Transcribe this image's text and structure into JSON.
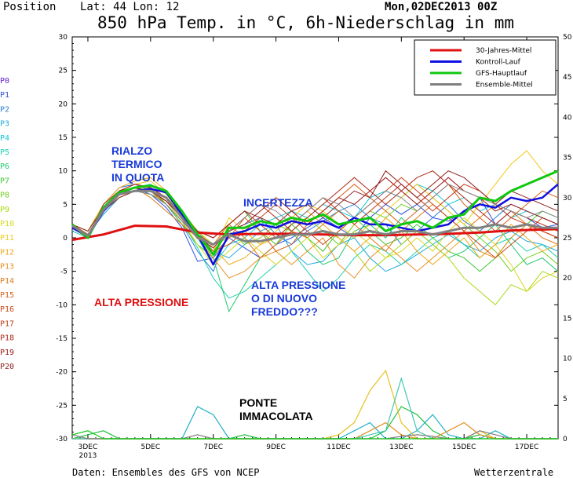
{
  "header": {
    "position_label": "Position",
    "location": "Lat: 44 Lon: 12",
    "run": "Mon,02DEC2013 00Z",
    "title": "850 hPa Temp. in °C, 6h-Niederschlag in mm"
  },
  "footer": {
    "source": "Daten: Ensembles des GFS von NCEP",
    "brand": "Wetterzentrale"
  },
  "members": [
    "P0",
    "P1",
    "P2",
    "P3",
    "P4",
    "P5",
    "P6",
    "P7",
    "P8",
    "P9",
    "P10",
    "P11",
    "P12",
    "P13",
    "P14",
    "P15",
    "P16",
    "P17",
    "P18",
    "P19",
    "P20"
  ],
  "member_colors": [
    "#6020d0",
    "#3050e0",
    "#2a7fd8",
    "#20a8e0",
    "#10c8d8",
    "#20d0b0",
    "#20c870",
    "#40c830",
    "#70d020",
    "#a8d810",
    "#d8d820",
    "#f0c818",
    "#f0a818",
    "#e89020",
    "#e07818",
    "#d86018",
    "#cc4818",
    "#c03818",
    "#b02818",
    "#a01818",
    "#902020"
  ],
  "annotations": {
    "rialzo": [
      "RIALZO",
      "TERMICO",
      "IN QUOTA"
    ],
    "incertezza": "INCERTEZZA",
    "alta_pressione_left": "ALTA PRESSIONE",
    "alta_pressione_mid": [
      "ALTA PRESSIONE",
      "O DI NUOVO",
      "FREDDO???"
    ],
    "ponte": [
      "PONTE",
      "IMMACOLATA"
    ]
  },
  "chart_data": {
    "type": "line",
    "ylim": [
      -30,
      30
    ],
    "y_ticks": [
      30,
      25,
      20,
      15,
      10,
      5,
      0,
      -5,
      -10,
      -15,
      -20,
      -25,
      -30
    ],
    "y2lim": [
      0,
      50
    ],
    "y2_ticks": [
      50,
      45,
      40,
      35,
      30,
      25,
      20,
      15,
      10,
      5,
      0
    ],
    "xlim": [
      0,
      15.5
    ],
    "x_ticks": [
      {
        "x": 0.5,
        "label": "3DEC",
        "sub": "2013"
      },
      {
        "x": 2.5,
        "label": "5DEC",
        "sub": ""
      },
      {
        "x": 4.5,
        "label": "7DEC",
        "sub": ""
      },
      {
        "x": 6.5,
        "label": "9DEC",
        "sub": ""
      },
      {
        "x": 8.5,
        "label": "11DEC",
        "sub": ""
      },
      {
        "x": 10.5,
        "label": "13DEC",
        "sub": ""
      },
      {
        "x": 12.5,
        "label": "15DEC",
        "sub": ""
      },
      {
        "x": 14.5,
        "label": "17DEC",
        "sub": ""
      }
    ],
    "legend": [
      {
        "name": "30-Jahres-Mittel",
        "color": "#e01010"
      },
      {
        "name": "Kontroll-Lauf",
        "color": "#1010e0"
      },
      {
        "name": "GFS-Hauptlauf",
        "color": "#10c810"
      },
      {
        "name": "Ensemble-Mittel",
        "color": "#808080"
      }
    ],
    "main_series": [
      {
        "name": "30-Jahres-Mittel",
        "color": "#e01010",
        "width": 3,
        "x": [
          0,
          1,
          2,
          3,
          4,
          5,
          6,
          7,
          8,
          9,
          10,
          11,
          12,
          13,
          14,
          15.5
        ],
        "y": [
          -0.3,
          0.5,
          1.8,
          1.7,
          0.8,
          0.5,
          0.6,
          0.6,
          0.5,
          0.4,
          0.4,
          0.5,
          0.6,
          0.8,
          1.1,
          1.3
        ]
      },
      {
        "name": "Kontroll-Lauf",
        "color": "#1010e0",
        "width": 2.5,
        "x": [
          0,
          0.5,
          1,
          1.5,
          2,
          2.5,
          3,
          3.5,
          4,
          4.5,
          5,
          5.5,
          6,
          6.5,
          7,
          7.5,
          8,
          8.5,
          9,
          9.5,
          10,
          10.5,
          11,
          11.5,
          12,
          12.5,
          13,
          13.5,
          14,
          14.5,
          15,
          15.5
        ],
        "y": [
          1.5,
          0.2,
          4,
          6.5,
          7,
          7.3,
          6.8,
          3.5,
          0.5,
          -4,
          0.5,
          1,
          2,
          1.5,
          2.5,
          2,
          2.5,
          1.5,
          3,
          2,
          2,
          1.5,
          1,
          1.5,
          2,
          4,
          5,
          4.5,
          6,
          5.5,
          6,
          8
        ]
      },
      {
        "name": "GFS-Hauptlauf",
        "color": "#10c810",
        "width": 3,
        "x": [
          0,
          0.5,
          1,
          1.5,
          2,
          2.5,
          3,
          3.5,
          4,
          4.5,
          5,
          5.5,
          6,
          6.5,
          7,
          7.5,
          8,
          8.5,
          9,
          9.5,
          10,
          10.5,
          11,
          11.5,
          12,
          12.5,
          13,
          13.5,
          14,
          14.5,
          15,
          15.5
        ],
        "y": [
          2,
          0,
          4.5,
          6.8,
          7.5,
          7.8,
          7,
          4,
          0.5,
          -2.5,
          1.5,
          1.5,
          2.5,
          2,
          3,
          2.5,
          3.5,
          2,
          2.5,
          3,
          1,
          2,
          2.5,
          1.5,
          3,
          3.5,
          6,
          5.5,
          7,
          8,
          9,
          10
        ]
      },
      {
        "name": "Ensemble-Mittel",
        "color": "#808080",
        "width": 3,
        "x": [
          0,
          0.5,
          1,
          1.5,
          2,
          2.5,
          3,
          3.5,
          4,
          4.5,
          5,
          5.5,
          6,
          6.5,
          7,
          7.5,
          8,
          8.5,
          9,
          9.5,
          10,
          10.5,
          11,
          11.5,
          12,
          12.5,
          13,
          13.5,
          14,
          14.5,
          15,
          15.5
        ],
        "y": [
          1.8,
          0.3,
          4.2,
          6.5,
          7,
          7,
          6,
          3,
          0,
          -1,
          0.5,
          -0.5,
          -0.5,
          0,
          0.5,
          0.5,
          1,
          0.5,
          0.5,
          1,
          0.5,
          1,
          1,
          0.5,
          1,
          1.5,
          1.5,
          2,
          1.5,
          2,
          1.5,
          1.5
        ]
      }
    ],
    "ensemble_x": [
      0,
      0.5,
      1,
      1.5,
      2,
      2.5,
      3,
      3.5,
      4,
      4.5,
      5,
      5.5,
      6,
      6.5,
      7,
      7.5,
      8,
      8.5,
      9,
      9.5,
      10,
      10.5,
      11,
      11.5,
      12,
      12.5,
      13,
      13.5,
      14,
      14.5,
      15,
      15.5
    ],
    "ensemble_members": [
      [
        1.5,
        0.5,
        4.5,
        6.8,
        7.5,
        6.5,
        4.5,
        1.5,
        -3.5,
        -3,
        0,
        -1.5,
        -3,
        -1,
        0,
        1.5,
        3,
        1.5,
        0,
        3,
        5,
        3.5,
        5,
        3,
        2.5,
        4,
        6,
        2,
        4,
        3,
        1.5,
        2
      ],
      [
        2,
        0,
        5,
        7.5,
        8,
        7,
        5,
        2,
        -2,
        -5,
        1,
        2,
        3,
        0.5,
        -1,
        1,
        2.5,
        4,
        5,
        3,
        2,
        -1,
        1,
        3,
        5,
        2.5,
        1,
        3,
        5,
        4,
        3,
        2
      ],
      [
        1.5,
        0.5,
        3.5,
        6,
        7,
        7.5,
        6,
        3.5,
        1,
        -2,
        -3,
        -1,
        1,
        2,
        -2,
        -4,
        -3.5,
        -1,
        0,
        -3,
        -5,
        -4,
        -2.5,
        -1,
        0.5,
        -1,
        -2,
        0,
        1,
        -0.5,
        -1,
        -2
      ],
      [
        2,
        0.5,
        4,
        6.5,
        7.5,
        8,
        6.5,
        4,
        0,
        -4,
        -1,
        0,
        2,
        3,
        4,
        3,
        5,
        4,
        3,
        6,
        7,
        6,
        8,
        7,
        5,
        6,
        4,
        5,
        3,
        4,
        3,
        2
      ],
      [
        1,
        0,
        4.5,
        7,
        7,
        6.5,
        5,
        2.5,
        -1.5,
        -6,
        -9,
        -8,
        -6,
        -4,
        -2,
        -5,
        -8,
        -6,
        -3,
        -1,
        -2,
        -4,
        -2,
        0,
        1,
        -1,
        -3,
        -1,
        0,
        -2,
        -1,
        -3
      ],
      [
        1.5,
        0,
        4,
        6.5,
        7.5,
        7,
        6,
        3,
        0,
        -3,
        -11,
        -7,
        -3,
        -1,
        1,
        -2,
        -4,
        -3,
        1,
        2,
        0,
        3,
        1,
        -1,
        -3,
        -2,
        0,
        2,
        -1,
        -4,
        -3,
        -5
      ],
      [
        2,
        1,
        5,
        7,
        8,
        7.5,
        5,
        2,
        -1,
        -3,
        2,
        4,
        1,
        -1,
        2,
        0,
        -2,
        1,
        3,
        1,
        -1,
        0,
        2,
        0,
        -2,
        -3,
        -5,
        -3,
        0,
        2,
        4,
        3
      ],
      [
        1.5,
        0.5,
        4,
        6,
        7,
        6.5,
        5.5,
        3,
        0.5,
        -2,
        1,
        -1,
        0,
        2,
        1,
        3,
        1,
        -1,
        2,
        4,
        3,
        5,
        4,
        6,
        4,
        2,
        0,
        -2,
        -5,
        -3,
        -2,
        -4
      ],
      [
        2,
        0.5,
        4.5,
        7,
        7.5,
        7,
        6,
        4,
        1,
        -1,
        0,
        1,
        -1,
        0,
        2,
        3,
        1,
        0,
        -2,
        -5,
        -3,
        -1,
        1,
        -1,
        -3,
        -6,
        -8,
        -10,
        -7,
        -8,
        -5,
        -6
      ],
      [
        1.5,
        0,
        4,
        6.5,
        7,
        7,
        5.5,
        2.5,
        -1,
        -4,
        -2,
        0,
        -2,
        -4,
        -2,
        0,
        -3,
        -1,
        1,
        -1,
        -3,
        -2,
        0,
        -2,
        1,
        3,
        1,
        -1,
        -4,
        -8,
        -6,
        -5
      ],
      [
        1.5,
        0.5,
        4.5,
        7,
        8,
        8.5,
        6.5,
        3.5,
        0,
        -2,
        3,
        1,
        -1,
        1,
        3,
        5,
        4,
        2,
        0,
        2,
        4,
        6,
        8,
        6,
        4,
        2,
        5,
        8,
        11,
        13,
        10,
        8
      ],
      [
        2,
        1,
        5,
        7.5,
        8.5,
        9,
        7,
        4,
        1,
        -1.5,
        -4,
        -3,
        -1,
        0,
        2,
        4,
        2,
        0,
        -2,
        0,
        3,
        1,
        -2,
        -4,
        -2,
        0,
        -3,
        -1,
        2,
        0,
        -2,
        -1
      ],
      [
        1.5,
        0.5,
        4,
        6.5,
        7.5,
        7.5,
        6,
        3,
        0,
        -3,
        -6,
        -5,
        -3,
        -2,
        -4,
        -2,
        0,
        -4,
        -6,
        -3,
        -1,
        -3,
        -5,
        -3,
        -1,
        1,
        -2,
        -3,
        0,
        2,
        1,
        0
      ],
      [
        2,
        0.5,
        4.5,
        7,
        7.5,
        6,
        4,
        2,
        0,
        -1,
        2,
        0,
        -3,
        -1,
        1,
        0,
        2,
        4,
        2,
        0,
        -2,
        1,
        3,
        5,
        3,
        1,
        3,
        5,
        4,
        2,
        0,
        -1
      ],
      [
        1.5,
        0,
        4,
        6.5,
        7,
        7,
        5,
        2.5,
        0.5,
        -2.5,
        0,
        3,
        1,
        -2,
        -1,
        2,
        4,
        6,
        8,
        6,
        4,
        2,
        4,
        6,
        8,
        5,
        3,
        1,
        3,
        5,
        7,
        6
      ],
      [
        2,
        0.5,
        4.5,
        7,
        8,
        7.5,
        6,
        3,
        0,
        -2,
        -1,
        1,
        3,
        5,
        3,
        1,
        -1,
        1,
        3,
        5,
        7,
        9,
        7,
        5,
        3,
        1,
        -1,
        -3,
        -1,
        1,
        3,
        2
      ],
      [
        1.5,
        0.5,
        4,
        6.5,
        7.5,
        7,
        5.5,
        3,
        1,
        0,
        2,
        4,
        2,
        0,
        2,
        4,
        6,
        4,
        2,
        4,
        6,
        8,
        6,
        4,
        6,
        8,
        7,
        5,
        3,
        2,
        1,
        0
      ],
      [
        2,
        0,
        5,
        7,
        8,
        7.5,
        6,
        3.5,
        0.5,
        -1,
        1,
        3,
        5,
        3,
        1,
        3,
        5,
        7,
        9,
        7,
        5,
        7,
        9,
        10,
        8,
        6,
        4,
        2,
        4,
        3,
        2,
        1
      ],
      [
        1.5,
        0.5,
        4,
        6,
        7,
        7,
        5.5,
        3,
        0,
        -1.5,
        1,
        2,
        4,
        6,
        4,
        2,
        4,
        6,
        5,
        7,
        9,
        7,
        5,
        7,
        9,
        7,
        6,
        4,
        5,
        4,
        3,
        2
      ],
      [
        2,
        1,
        4.5,
        7,
        7.5,
        7,
        6,
        3.5,
        1,
        0,
        2,
        4,
        3,
        2,
        4,
        5,
        3,
        5,
        7,
        6,
        10,
        8,
        6,
        8,
        10,
        9,
        7,
        5,
        7,
        6,
        5,
        4
      ],
      [
        1.5,
        0.5,
        4,
        6.5,
        7,
        6.5,
        5,
        2.5,
        0,
        -1,
        1,
        3,
        5,
        4,
        2,
        4,
        6,
        5,
        3,
        5,
        7,
        6,
        4,
        6,
        8,
        7,
        6,
        5,
        4,
        3,
        4,
        3
      ]
    ],
    "precip_x": [
      0,
      0.5,
      1,
      1.5,
      2,
      2.5,
      3,
      3.5,
      4,
      4.5,
      5,
      5.5,
      6,
      6.5,
      7,
      7.5,
      8,
      8.5,
      9,
      9.5,
      10,
      10.5,
      11,
      11.5,
      12,
      12.5,
      13,
      13.5,
      14,
      14.5,
      15,
      15.5
    ],
    "precip_members": [
      {
        "color": "#20c040",
        "y": [
          0,
          0.5,
          1,
          0,
          0,
          0,
          0,
          0,
          0,
          0,
          0,
          0.5,
          0,
          0,
          0,
          0,
          0,
          0,
          0,
          0,
          1,
          4,
          3,
          1,
          0,
          0,
          0.5,
          0,
          0,
          0,
          0,
          0
        ]
      },
      {
        "color": "#20b0c8",
        "y": [
          0,
          0,
          0,
          0,
          0,
          0,
          0,
          0,
          4,
          3,
          0,
          0,
          0,
          0,
          0,
          0,
          0,
          0,
          1,
          2,
          0,
          0,
          1,
          3,
          0.5,
          0,
          0,
          1,
          0,
          0,
          0,
          0
        ]
      },
      {
        "color": "#e8c020",
        "y": [
          0,
          0,
          0,
          0,
          0,
          0,
          0,
          0,
          0,
          0,
          0,
          0,
          0,
          0,
          0,
          0,
          0,
          0.5,
          2,
          6,
          8.5,
          2,
          0,
          0,
          0,
          0,
          1,
          0,
          0,
          0,
          0,
          0
        ]
      },
      {
        "color": "#e09020",
        "y": [
          0,
          0,
          0,
          0,
          0,
          0,
          0,
          0,
          0,
          0,
          0,
          0,
          0,
          0,
          0,
          0,
          0,
          0,
          0,
          1,
          2,
          0.5,
          0,
          0,
          1,
          2,
          0.5,
          0,
          0,
          0,
          0,
          0
        ]
      },
      {
        "color": "#40c8b0",
        "y": [
          0,
          0,
          0,
          0,
          0,
          0,
          0,
          0,
          0,
          0,
          0,
          0,
          0,
          0,
          0,
          0,
          0,
          0,
          0,
          0.5,
          1,
          7.5,
          1,
          0,
          0,
          0,
          0,
          0,
          0,
          0,
          0,
          0
        ]
      },
      {
        "color": "#808080",
        "y": [
          0.5,
          0,
          0,
          0,
          0,
          0,
          0,
          0,
          0.5,
          0,
          0,
          0,
          0,
          0,
          0,
          0,
          0,
          0,
          0,
          0,
          0,
          0.3,
          0.5,
          0.3,
          0,
          0,
          1,
          0.5,
          0,
          0,
          0,
          0
        ]
      },
      {
        "color": "#10c810",
        "y": [
          0.5,
          1,
          0,
          0,
          0,
          0,
          0,
          0,
          0,
          0,
          0,
          0,
          0,
          0,
          0,
          0,
          0,
          0,
          0,
          0,
          0,
          0,
          0,
          0,
          0,
          0,
          0,
          0,
          0,
          0,
          0,
          0
        ]
      }
    ]
  }
}
